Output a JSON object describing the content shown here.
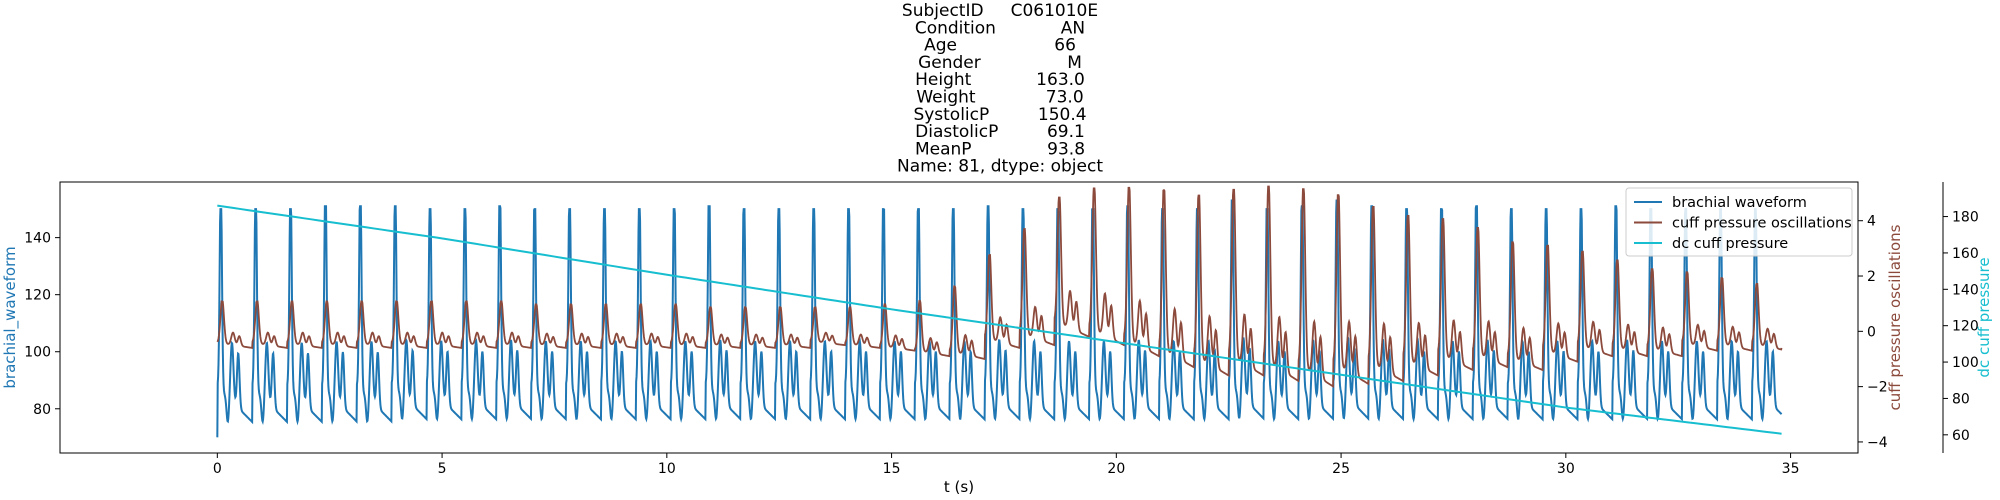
{
  "chart_data": {
    "type": "line",
    "title_lines": [
      "SubjectID     C061010E",
      "Condition            AN",
      "Age                  66",
      "Gender                M",
      "Height            163.0",
      "Weight             73.0",
      "SystolicP         150.4",
      "DiastolicP         69.1",
      "MeanP              93.8",
      "Name: 81, dtype: object"
    ],
    "xlabel": "t (s)",
    "xlim": [
      -3.5,
      36.5
    ],
    "xticks": [
      0,
      5,
      10,
      15,
      20,
      25,
      30,
      35
    ],
    "left_axis": {
      "label": "brachial_waveform",
      "color": "#1f77b4",
      "ylim": [
        64.5,
        159.5
      ],
      "ticks": [
        80,
        100,
        120,
        140
      ]
    },
    "right_axis": {
      "label": "cuff pressure oscillations",
      "color": "#8c4a3c",
      "ylim": [
        -4.4,
        5.4
      ],
      "ticks": [
        -4,
        -2,
        0,
        2,
        4
      ]
    },
    "right_axis2": {
      "label": "dc cuff pressure",
      "color": "#17becf",
      "ylim": [
        50,
        199
      ],
      "ticks": [
        60,
        80,
        100,
        120,
        140,
        160,
        180
      ]
    },
    "legend": {
      "position": "top-right",
      "entries": [
        "brachial waveform",
        "cuff pressure oscillations",
        "dc cuff pressure"
      ]
    },
    "series": [
      {
        "name": "brachial waveform",
        "axis": "left",
        "color": "#1f77b4",
        "x": [
          0,
          0.08,
          0.2,
          0.3,
          0.4,
          0.48,
          0.56,
          0.62,
          0.76,
          0.84
        ],
        "y": [
          70,
          150,
          118,
          88,
          92,
          84,
          92,
          78,
          68,
          150
        ],
        "note_pattern": "periodic beat, period ~0.78 s, t from 0 to 34.8",
        "beat_count": 45,
        "systolic_peaks": [
          150,
          150,
          150,
          151,
          151,
          151,
          150,
          150,
          151,
          150,
          150,
          150,
          150,
          150,
          151,
          150,
          150,
          150,
          150,
          150,
          150,
          150,
          151,
          150,
          150,
          150,
          151,
          150,
          150,
          153,
          150,
          151,
          153,
          151,
          150,
          150,
          151,
          150,
          150,
          150,
          151,
          150,
          150,
          150,
          150
        ],
        "diastolic_troughs": [
          68,
          68,
          68,
          68,
          68,
          69,
          69,
          69,
          69,
          69,
          69,
          69,
          69,
          69,
          69,
          69,
          69,
          69,
          69,
          69,
          69,
          69,
          69,
          69,
          69,
          69,
          69,
          69,
          69,
          69,
          69,
          69,
          69,
          69,
          69,
          69,
          69,
          69,
          69,
          69,
          69,
          69,
          69,
          69,
          69
        ]
      },
      {
        "name": "cuff pressure oscillations",
        "axis": "right",
        "color": "#8c4a3c",
        "beat_amplitudes": [
          1.6,
          1.6,
          1.6,
          1.6,
          1.6,
          1.6,
          1.6,
          1.6,
          1.6,
          1.5,
          1.5,
          1.5,
          1.5,
          1.5,
          1.4,
          1.4,
          1.4,
          1.3,
          1.4,
          1.6,
          1.9,
          2.5,
          3.2,
          4.0,
          4.8,
          5.4,
          5.8,
          6.1,
          6.2,
          6.4,
          6.7,
          6.8,
          6.5,
          6.0,
          5.5,
          5.2,
          4.8,
          4.4,
          4.0,
          3.6,
          3.3,
          3.0,
          2.7,
          2.5,
          2.3
        ],
        "beat_max": [
          1.0,
          1.0,
          1.0,
          1.0,
          1.0,
          1.0,
          1.0,
          1.0,
          1.0,
          0.9,
          0.9,
          0.9,
          0.9,
          0.9,
          0.8,
          0.8,
          0.8,
          0.8,
          0.8,
          0.9,
          1.0,
          1.5,
          2.6,
          3.5,
          4.6,
          4.9,
          4.9,
          4.8,
          4.6,
          4.8,
          4.9,
          4.8,
          4.6,
          4.2,
          3.9,
          3.8,
          3.5,
          3.0,
          2.9,
          2.7,
          2.4,
          2.1,
          2.0,
          1.8,
          1.6
        ],
        "x_end": 34.8,
        "y_end": -0.6
      },
      {
        "name": "dc cuff pressure",
        "axis": "right2",
        "color": "#17becf",
        "x": [
          0,
          5,
          10,
          15,
          20,
          25,
          30,
          35
        ],
        "y": [
          186,
          168,
          148,
          129,
          111,
          93,
          75,
          60
        ]
      }
    ]
  }
}
